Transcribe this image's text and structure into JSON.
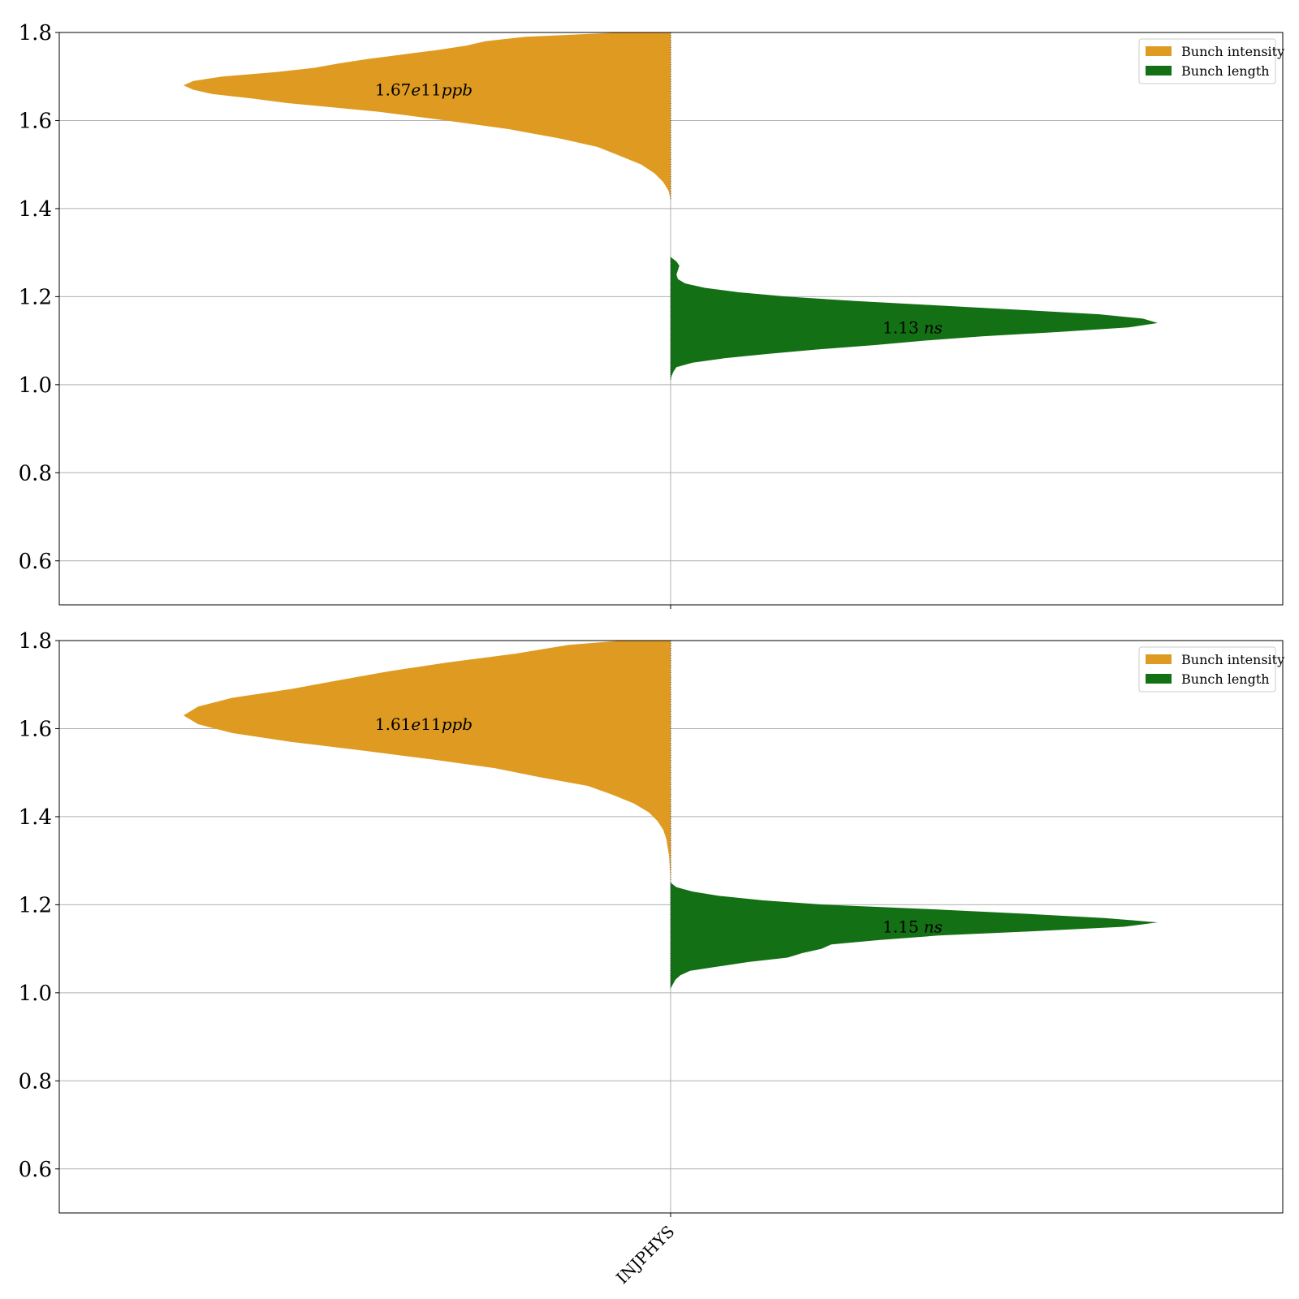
{
  "chart_data": [
    {
      "type": "violin",
      "title": "",
      "xlabel": "",
      "ylabel": "",
      "categories": [
        "INJPHYS"
      ],
      "ylim": [
        0.5,
        1.8
      ],
      "yticks": [
        0.6,
        0.8,
        1.0,
        1.2,
        1.4,
        1.6,
        1.8
      ],
      "grid": "horizontal",
      "legend_position": "top-right",
      "series": [
        {
          "name": "Bunch intensity",
          "side": "left",
          "color": "#df9b21",
          "annotation": {
            "prefix": "1.67",
            "italic": "e",
            "mid": "11",
            "unit": "ppb"
          },
          "median": 1.67,
          "profile": [
            [
              1.8,
              0.1
            ],
            [
              1.79,
              0.3
            ],
            [
              1.78,
              0.38
            ],
            [
              1.77,
              0.42
            ],
            [
              1.76,
              0.48
            ],
            [
              1.75,
              0.55
            ],
            [
              1.74,
              0.62
            ],
            [
              1.73,
              0.68
            ],
            [
              1.72,
              0.73
            ],
            [
              1.71,
              0.81
            ],
            [
              1.7,
              0.92
            ],
            [
              1.69,
              0.98
            ],
            [
              1.68,
              1.0
            ],
            [
              1.67,
              0.98
            ],
            [
              1.66,
              0.94
            ],
            [
              1.65,
              0.86
            ],
            [
              1.64,
              0.79
            ],
            [
              1.62,
              0.6
            ],
            [
              1.6,
              0.46
            ],
            [
              1.58,
              0.33
            ],
            [
              1.56,
              0.23
            ],
            [
              1.54,
              0.15
            ],
            [
              1.52,
              0.105
            ],
            [
              1.5,
              0.06
            ],
            [
              1.48,
              0.033
            ],
            [
              1.46,
              0.015
            ],
            [
              1.44,
              0.004
            ],
            [
              1.42,
              0.0
            ]
          ]
        },
        {
          "name": "Bunch length",
          "side": "right",
          "color": "#137015",
          "annotation": {
            "prefix": "1.13",
            "unit": "ns"
          },
          "median": 1.13,
          "profile": [
            [
              1.29,
              0.0
            ],
            [
              1.28,
              0.012
            ],
            [
              1.27,
              0.018
            ],
            [
              1.26,
              0.015
            ],
            [
              1.25,
              0.012
            ],
            [
              1.24,
              0.015
            ],
            [
              1.23,
              0.03
            ],
            [
              1.22,
              0.07
            ],
            [
              1.21,
              0.14
            ],
            [
              1.2,
              0.24
            ],
            [
              1.19,
              0.38
            ],
            [
              1.18,
              0.55
            ],
            [
              1.17,
              0.72
            ],
            [
              1.16,
              0.88
            ],
            [
              1.15,
              0.97
            ],
            [
              1.14,
              1.0
            ],
            [
              1.13,
              0.94
            ],
            [
              1.12,
              0.8
            ],
            [
              1.11,
              0.64
            ],
            [
              1.1,
              0.52
            ],
            [
              1.09,
              0.42
            ],
            [
              1.08,
              0.3
            ],
            [
              1.07,
              0.2
            ],
            [
              1.06,
              0.11
            ],
            [
              1.05,
              0.045
            ],
            [
              1.04,
              0.012
            ],
            [
              1.03,
              0.006
            ],
            [
              1.02,
              0.002
            ],
            [
              1.01,
              0.0
            ]
          ]
        }
      ]
    },
    {
      "type": "violin",
      "title": "",
      "xlabel": "",
      "ylabel": "",
      "categories": [
        "INJPHYS"
      ],
      "ylim": [
        0.5,
        1.8
      ],
      "yticks": [
        0.6,
        0.8,
        1.0,
        1.2,
        1.4,
        1.6,
        1.8
      ],
      "grid": "horizontal",
      "legend_position": "top-right",
      "series": [
        {
          "name": "Bunch intensity",
          "side": "left",
          "color": "#df9b21",
          "annotation": {
            "prefix": "1.61",
            "italic": "e",
            "mid": "11",
            "unit": "ppb"
          },
          "median": 1.61,
          "profile": [
            [
              1.8,
              0.1
            ],
            [
              1.79,
              0.21
            ],
            [
              1.77,
              0.32
            ],
            [
              1.75,
              0.46
            ],
            [
              1.73,
              0.58
            ],
            [
              1.71,
              0.68
            ],
            [
              1.69,
              0.78
            ],
            [
              1.67,
              0.9
            ],
            [
              1.65,
              0.97
            ],
            [
              1.63,
              1.0
            ],
            [
              1.61,
              0.97
            ],
            [
              1.59,
              0.9
            ],
            [
              1.57,
              0.78
            ],
            [
              1.55,
              0.63
            ],
            [
              1.53,
              0.49
            ],
            [
              1.51,
              0.36
            ],
            [
              1.49,
              0.27
            ],
            [
              1.47,
              0.17
            ],
            [
              1.45,
              0.12
            ],
            [
              1.43,
              0.075
            ],
            [
              1.41,
              0.045
            ],
            [
              1.39,
              0.027
            ],
            [
              1.37,
              0.015
            ],
            [
              1.35,
              0.009
            ],
            [
              1.33,
              0.006
            ],
            [
              1.31,
              0.003
            ],
            [
              1.29,
              0.002
            ],
            [
              1.27,
              0.001
            ],
            [
              1.25,
              0.0
            ]
          ]
        },
        {
          "name": "Bunch length",
          "side": "right",
          "color": "#137015",
          "annotation": {
            "prefix": "1.15",
            "unit": "ns"
          },
          "median": 1.15,
          "profile": [
            [
              1.25,
              0.0
            ],
            [
              1.24,
              0.012
            ],
            [
              1.23,
              0.045
            ],
            [
              1.22,
              0.1
            ],
            [
              1.21,
              0.19
            ],
            [
              1.2,
              0.32
            ],
            [
              1.19,
              0.53
            ],
            [
              1.18,
              0.72
            ],
            [
              1.17,
              0.89
            ],
            [
              1.16,
              1.0
            ],
            [
              1.15,
              0.93
            ],
            [
              1.14,
              0.75
            ],
            [
              1.13,
              0.55
            ],
            [
              1.12,
              0.43
            ],
            [
              1.11,
              0.33
            ],
            [
              1.1,
              0.31
            ],
            [
              1.09,
              0.27
            ],
            [
              1.08,
              0.24
            ],
            [
              1.07,
              0.16
            ],
            [
              1.06,
              0.1
            ],
            [
              1.05,
              0.04
            ],
            [
              1.04,
              0.02
            ],
            [
              1.03,
              0.01
            ],
            [
              1.02,
              0.005
            ],
            [
              1.01,
              0.0
            ]
          ]
        }
      ]
    }
  ]
}
